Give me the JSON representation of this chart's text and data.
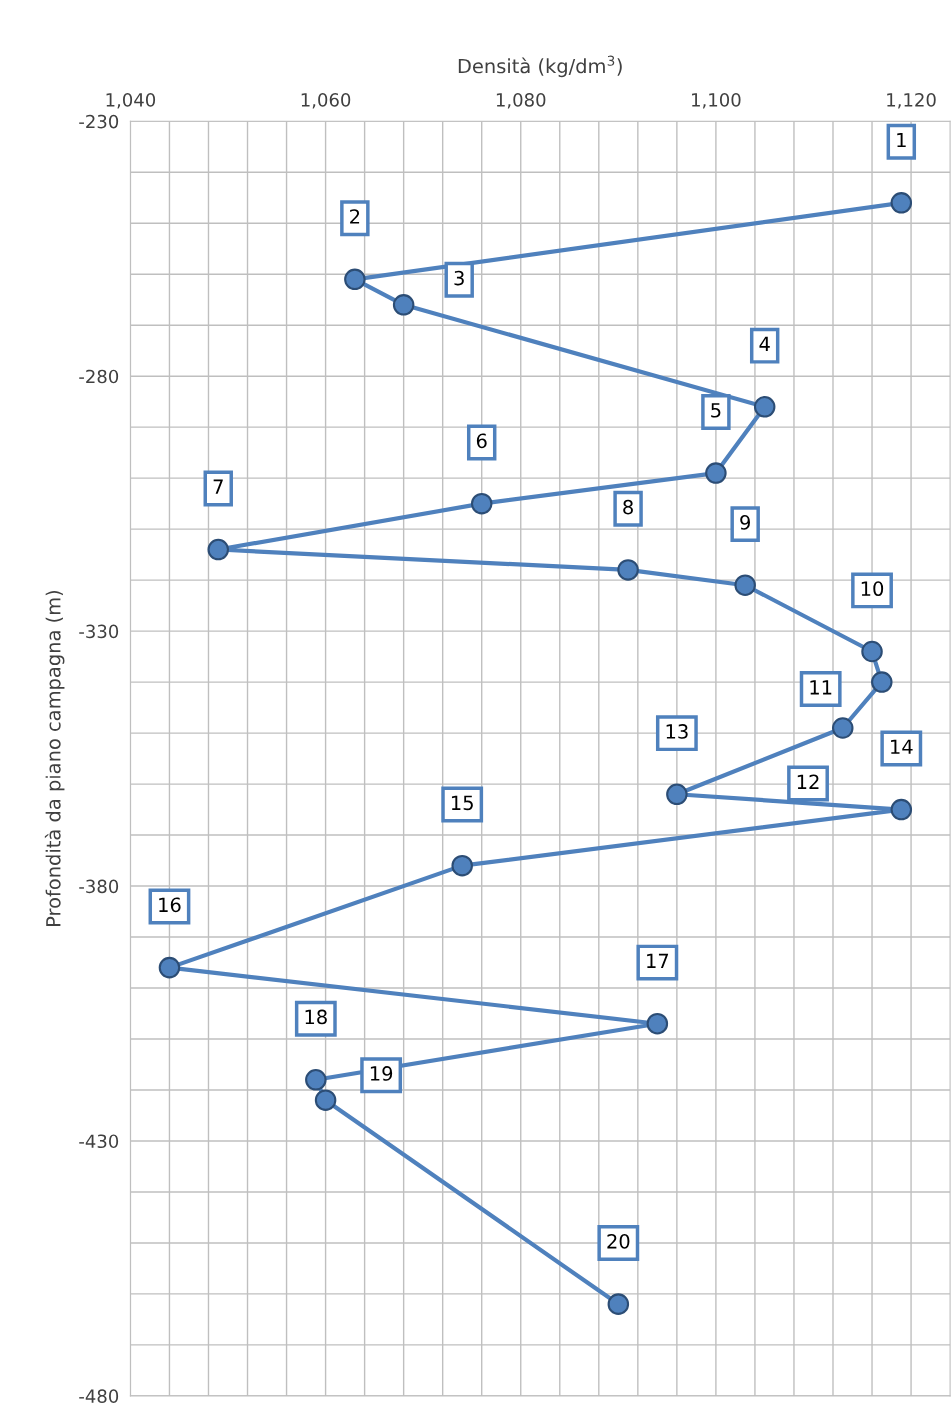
{
  "chart_data": {
    "type": "line",
    "xlabel": "Densità (kg/dm$^{3}$)",
    "ylabel": "Profondità da piano campagna (m)",
    "x": [
      1119,
      1063,
      1068,
      1105,
      1100,
      1076,
      1049,
      1091,
      1103,
      1116,
      1117,
      1113,
      1096,
      1119,
      1074,
      1044,
      1094,
      1059,
      1060,
      1090
    ],
    "series": [
      {
        "color": "#4f81bd",
        "values": [
          -246,
          -261,
          -266,
          -286,
          -299,
          -305,
          -314,
          -318,
          -321,
          -334,
          -340,
          -349,
          -362,
          -365,
          -376,
          -396,
          -407,
          -418,
          -422,
          -462
        ]
      }
    ],
    "annotations": [
      {
        "text": "1",
        "x": 1119,
        "y": -246
      },
      {
        "text": "2",
        "x": 1063,
        "y": -261
      },
      {
        "text": "3",
        "x": 1068,
        "y": -266
      },
      {
        "text": "4",
        "x": 1105,
        "y": -286
      },
      {
        "text": "5",
        "x": 1100,
        "y": -299
      },
      {
        "text": "6",
        "x": 1076,
        "y": -305
      },
      {
        "text": "7",
        "x": 1049,
        "y": -314
      },
      {
        "text": "8",
        "x": 1091,
        "y": -318
      },
      {
        "text": "9",
        "x": 1103,
        "y": -321
      },
      {
        "text": "10",
        "x": 1116,
        "y": -334
      },
      {
        "text": "11",
        "x": 1117,
        "y": -340
      },
      {
        "text": "12",
        "x": 1113,
        "y": -349
      },
      {
        "text": "13",
        "x": 1096,
        "y": -362
      },
      {
        "text": "14",
        "x": 1119,
        "y": -365
      },
      {
        "text": "15",
        "x": 1074,
        "y": -376
      },
      {
        "text": "16",
        "x": 1044,
        "y": -396
      },
      {
        "text": "17",
        "x": 1094,
        "y": -407
      },
      {
        "text": "18",
        "x": 1059,
        "y": -418
      },
      {
        "text": "19",
        "x": 1060,
        "y": -422
      },
      {
        "text": "20",
        "x": 1090,
        "y": -462
      }
    ],
    "xlim": [
      1040,
      1124
    ],
    "ylim": [
      -480,
      -230
    ],
    "xticks": [
      {
        "value": 1040,
        "label": "1,040"
      },
      {
        "value": 1044,
        "label": null
      },
      {
        "value": 1048,
        "label": null
      },
      {
        "value": 1052,
        "label": null
      },
      {
        "value": 1056,
        "label": null
      },
      {
        "value": 1060,
        "label": "1,060"
      },
      {
        "value": 1064,
        "label": null
      },
      {
        "value": 1068,
        "label": null
      },
      {
        "value": 1072,
        "label": null
      },
      {
        "value": 1076,
        "label": null
      },
      {
        "value": 1080,
        "label": "1,080"
      },
      {
        "value": 1084,
        "label": null
      },
      {
        "value": 1088,
        "label": null
      },
      {
        "value": 1092,
        "label": null
      },
      {
        "value": 1096,
        "label": null
      },
      {
        "value": 1100,
        "label": "1,100"
      },
      {
        "value": 1104,
        "label": null
      },
      {
        "value": 1108,
        "label": null
      },
      {
        "value": 1112,
        "label": null
      },
      {
        "value": 1116,
        "label": null
      },
      {
        "value": 1120,
        "label": "1,120"
      }
    ],
    "yticks": [
      -230,
      {
        "value": -240,
        "label": null
      },
      {
        "value": -250,
        "label": null
      },
      {
        "value": -260,
        "label": null
      },
      {
        "value": -270,
        "label": null
      },
      -280,
      {
        "value": -290,
        "label": null
      },
      {
        "value": -300,
        "label": null
      },
      {
        "value": -310,
        "label": null
      },
      {
        "value": -320,
        "label": null
      },
      -330,
      {
        "value": -340,
        "label": null
      },
      {
        "value": -350,
        "label": null
      },
      {
        "value": -360,
        "label": null
      },
      {
        "value": -370,
        "label": null
      },
      -380,
      {
        "value": -390,
        "label": null
      },
      {
        "value": -400,
        "label": null
      },
      {
        "value": -410,
        "label": null
      },
      {
        "value": -420,
        "label": null
      },
      -430,
      {
        "value": -440,
        "label": null
      },
      {
        "value": -450,
        "label": null
      },
      {
        "value": -460,
        "label": null
      },
      {
        "value": -470,
        "label": null
      },
      -480
    ],
    "grid": true,
    "marker": "circle",
    "line_style": "solid"
  }
}
